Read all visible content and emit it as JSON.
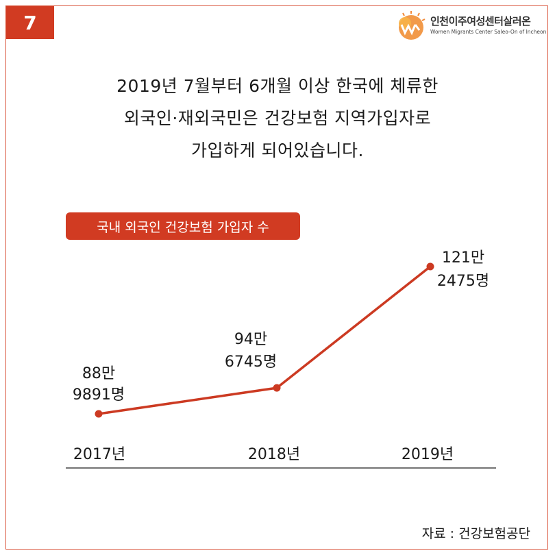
{
  "page_number": "7",
  "logo": {
    "name": "인천이주여성센터살러온",
    "subtitle": "Women Migrants Center Saleo-On of Incheon"
  },
  "headline": [
    "2019년 7월부터 6개월 이상 한국에 체류한",
    "외국인·재외국민은 건강보험 지역가입자로",
    "가입하게 되어있습니다."
  ],
  "source": "자료 : 건강보험공단",
  "colors": {
    "accent": "#d13b22",
    "line": "#cc3a22"
  },
  "chart_data": {
    "type": "line",
    "title": "국내 외국인 건강보험 가입자 수",
    "xlabel": "",
    "ylabel": "",
    "categories": [
      "2017년",
      "2018년",
      "2019년"
    ],
    "values": [
      889891,
      946745,
      1212475
    ],
    "data_labels": [
      [
        "88만",
        "9891명"
      ],
      [
        "94만",
        "6745명"
      ],
      [
        "121만",
        "2475명"
      ]
    ],
    "grid": false,
    "legend": "none"
  }
}
